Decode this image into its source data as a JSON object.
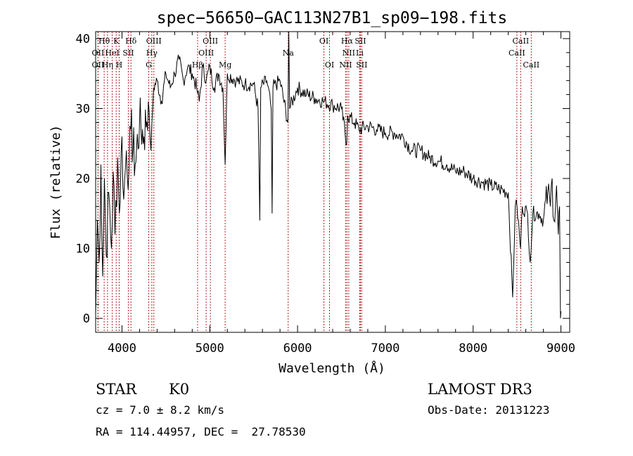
{
  "chart_data": {
    "type": "line",
    "title": "spec−56650−GAC113N27B1_sp09−198.fits",
    "xlabel": "Wavelength (Å)",
    "ylabel": "Flux (relative)",
    "xlim": [
      3700,
      9100
    ],
    "ylim": [
      -2,
      41
    ],
    "x_ticks": [
      4000,
      5000,
      6000,
      7000,
      8000,
      9000
    ],
    "y_ticks": [
      0,
      10,
      20,
      30,
      40
    ],
    "series": [
      {
        "name": "flux",
        "points": [
          [
            3700,
            0.5
          ],
          [
            3720,
            14
          ],
          [
            3740,
            8
          ],
          [
            3760,
            22
          ],
          [
            3780,
            6
          ],
          [
            3800,
            20
          ],
          [
            3820,
            9
          ],
          [
            3850,
            18
          ],
          [
            3880,
            10
          ],
          [
            3900,
            21
          ],
          [
            3920,
            12
          ],
          [
            3950,
            23
          ],
          [
            3970,
            15
          ],
          [
            4000,
            26
          ],
          [
            4020,
            17
          ],
          [
            4050,
            24
          ],
          [
            4080,
            21
          ],
          [
            4100,
            27
          ],
          [
            4150,
            22
          ],
          [
            4200,
            28
          ],
          [
            4250,
            26
          ],
          [
            4300,
            31
          ],
          [
            4330,
            24
          ],
          [
            4360,
            33
          ],
          [
            4400,
            34
          ],
          [
            4450,
            31
          ],
          [
            4500,
            35
          ],
          [
            4550,
            33
          ],
          [
            4600,
            35
          ],
          [
            4650,
            37
          ],
          [
            4700,
            34
          ],
          [
            4750,
            36
          ],
          [
            4800,
            35
          ],
          [
            4850,
            33
          ],
          [
            4880,
            31
          ],
          [
            4920,
            36
          ],
          [
            4960,
            34
          ],
          [
            5000,
            36
          ],
          [
            5050,
            33
          ],
          [
            5100,
            35
          ],
          [
            5150,
            33
          ],
          [
            5175,
            22
          ],
          [
            5200,
            35
          ],
          [
            5300,
            34
          ],
          [
            5400,
            33.5
          ],
          [
            5500,
            33.5
          ],
          [
            5550,
            30
          ],
          [
            5570,
            14
          ],
          [
            5580,
            33
          ],
          [
            5650,
            34
          ],
          [
            5700,
            30
          ],
          [
            5710,
            15
          ],
          [
            5720,
            33
          ],
          [
            5800,
            34
          ],
          [
            5890,
            28
          ],
          [
            5900,
            41
          ],
          [
            5910,
            30
          ],
          [
            6000,
            33
          ],
          [
            6100,
            32
          ],
          [
            6200,
            31.5
          ],
          [
            6300,
            31
          ],
          [
            6400,
            30.5
          ],
          [
            6500,
            30
          ],
          [
            6560,
            25
          ],
          [
            6570,
            29
          ],
          [
            6650,
            28
          ],
          [
            6700,
            27
          ],
          [
            6800,
            27.5
          ],
          [
            6900,
            27
          ],
          [
            7000,
            26.5
          ],
          [
            7100,
            26.5
          ],
          [
            7200,
            26
          ],
          [
            7300,
            24
          ],
          [
            7400,
            24
          ],
          [
            7500,
            23
          ],
          [
            7600,
            22.5
          ],
          [
            7700,
            22
          ],
          [
            7800,
            21
          ],
          [
            7900,
            21
          ],
          [
            8000,
            20
          ],
          [
            8100,
            19.5
          ],
          [
            8200,
            19
          ],
          [
            8300,
            18.5
          ],
          [
            8400,
            18
          ],
          [
            8450,
            3
          ],
          [
            8480,
            16
          ],
          [
            8500,
            16
          ],
          [
            8540,
            10
          ],
          [
            8560,
            16
          ],
          [
            8620,
            15
          ],
          [
            8650,
            8
          ],
          [
            8680,
            15
          ],
          [
            8750,
            15
          ],
          [
            8800,
            14
          ],
          [
            8850,
            18
          ],
          [
            8880,
            16
          ],
          [
            8900,
            20
          ],
          [
            8920,
            14
          ],
          [
            8950,
            19
          ],
          [
            8970,
            12
          ],
          [
            8985,
            16
          ],
          [
            8995,
            0
          ],
          [
            9000,
            1
          ]
        ]
      }
    ],
    "line_markers": [
      {
        "name": "Hθ",
        "wavelength": 3797,
        "row": 0
      },
      {
        "name": "OII",
        "wavelength": 3727,
        "row": 1
      },
      {
        "name": "OII",
        "wavelength": 3727,
        "row": 2
      },
      {
        "name": "K",
        "wavelength": 3934,
        "row": 0
      },
      {
        "name": "HeI",
        "wavelength": 3889,
        "row": 1
      },
      {
        "name": "Hη",
        "wavelength": 3835,
        "row": 2
      },
      {
        "name": "Hδ",
        "wavelength": 4102,
        "row": 0
      },
      {
        "name": "SII",
        "wavelength": 4072,
        "row": 1
      },
      {
        "name": "H",
        "wavelength": 3968,
        "row": 2
      },
      {
        "name": "OIII",
        "wavelength": 4363,
        "row": 0
      },
      {
        "name": "Hγ",
        "wavelength": 4340,
        "row": 1
      },
      {
        "name": "G",
        "wavelength": 4305,
        "row": 2
      },
      {
        "name": "OIII",
        "wavelength": 5007,
        "row": 0
      },
      {
        "name": "OIII",
        "wavelength": 4959,
        "row": 1
      },
      {
        "name": "Hβ",
        "wavelength": 4861,
        "row": 2
      },
      {
        "name": "Mg",
        "wavelength": 5175,
        "row": 2
      },
      {
        "name": "Na",
        "wavelength": 5893,
        "row": 1
      },
      {
        "name": "OI",
        "wavelength": 6300,
        "row": 0
      },
      {
        "name": "OI",
        "wavelength": 6364,
        "row": 2
      },
      {
        "name": "Hα",
        "wavelength": 6563,
        "row": 0
      },
      {
        "name": "NII",
        "wavelength": 6583,
        "row": 1
      },
      {
        "name": "NII",
        "wavelength": 6548,
        "row": 2
      },
      {
        "name": "SII",
        "wavelength": 6716,
        "row": 0
      },
      {
        "name": "Li",
        "wavelength": 6708,
        "row": 1
      },
      {
        "name": "SII",
        "wavelength": 6731,
        "row": 2
      },
      {
        "name": "CaII",
        "wavelength": 8542,
        "row": 0
      },
      {
        "name": "CaII",
        "wavelength": 8498,
        "row": 1
      },
      {
        "name": "CaII",
        "wavelength": 8662,
        "row": 2
      }
    ],
    "colors": {
      "spectrum": "#000000",
      "markers": "#b22222",
      "axes": "#000000"
    }
  },
  "info": {
    "class": "STAR",
    "subclass": "K0",
    "cz": "cz = 7.0 ± 8.2 km/s",
    "radec": "RA = 114.44957, DEC =  27.78530",
    "survey": "LAMOST DR3",
    "obs_date": "Obs-Date: 20131223"
  }
}
